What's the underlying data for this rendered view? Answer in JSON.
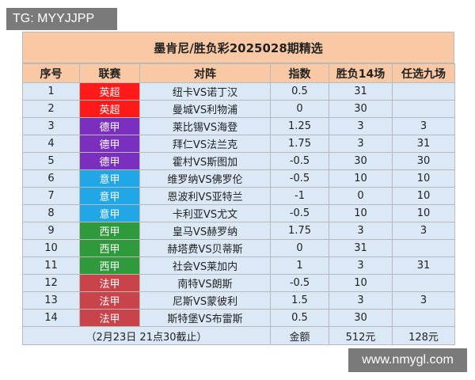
{
  "watermark_top": "TG: MYYJJPP",
  "watermark_bottom": "www.nmygl.com",
  "title": "墨肯尼/胜负彩2025028期精选",
  "headers": {
    "index": "序号",
    "league": "联赛",
    "match": "对阵",
    "handicap": "指数",
    "sf14": "胜负14场",
    "r9": "任选九场"
  },
  "league_colors": {
    "英超": "#ff1a1a",
    "德甲": "#7b2fbe",
    "意甲": "#22a7e6",
    "西甲": "#2f9a3c",
    "法甲": "#c9444a"
  },
  "rows": [
    {
      "index": "1",
      "league": "英超",
      "match": "纽卡VS诺丁汉",
      "handicap": "0.5",
      "sf14": "31",
      "r9": ""
    },
    {
      "index": "2",
      "league": "英超",
      "match": "曼城VS利物浦",
      "handicap": "0",
      "sf14": "30",
      "r9": ""
    },
    {
      "index": "3",
      "league": "德甲",
      "match": "莱比锡VS海登",
      "handicap": "1.25",
      "sf14": "3",
      "r9": "3"
    },
    {
      "index": "4",
      "league": "德甲",
      "match": "拜仁VS法兰克",
      "handicap": "1.75",
      "sf14": "3",
      "r9": "31"
    },
    {
      "index": "5",
      "league": "德甲",
      "match": "霍村VS斯图加",
      "handicap": "-0.5",
      "sf14": "30",
      "r9": "30"
    },
    {
      "index": "6",
      "league": "意甲",
      "match": "维罗纳VS佛罗伦",
      "handicap": "-0.5",
      "sf14": "10",
      "r9": "10"
    },
    {
      "index": "7",
      "league": "意甲",
      "match": "恩波利VS亚特兰",
      "handicap": "-1",
      "sf14": "0",
      "r9": "10"
    },
    {
      "index": "8",
      "league": "意甲",
      "match": "卡利亚VS尤文",
      "handicap": "-0.5",
      "sf14": "10",
      "r9": "10"
    },
    {
      "index": "9",
      "league": "西甲",
      "match": "皇马VS赫罗纳",
      "handicap": "1.75",
      "sf14": "3",
      "r9": "3"
    },
    {
      "index": "10",
      "league": "西甲",
      "match": "赫塔费VS贝蒂斯",
      "handicap": "0",
      "sf14": "31",
      "r9": ""
    },
    {
      "index": "11",
      "league": "西甲",
      "match": "社会VS莱加内",
      "handicap": "1",
      "sf14": "3",
      "r9": "31"
    },
    {
      "index": "12",
      "league": "法甲",
      "match": "南特VS朗斯",
      "handicap": "-0.5",
      "sf14": "10",
      "r9": ""
    },
    {
      "index": "13",
      "league": "法甲",
      "match": "尼斯VS蒙彼利",
      "handicap": "1.5",
      "sf14": "3",
      "r9": "3"
    },
    {
      "index": "14",
      "league": "法甲",
      "match": "斯特堡VS布雷斯",
      "handicap": "0.5",
      "sf14": "30",
      "r9": ""
    }
  ],
  "footer": {
    "deadline": "（2月23日 21点30截止）",
    "amount_label": "金额",
    "sf14_amount": "512元",
    "r9_amount": "128元"
  }
}
